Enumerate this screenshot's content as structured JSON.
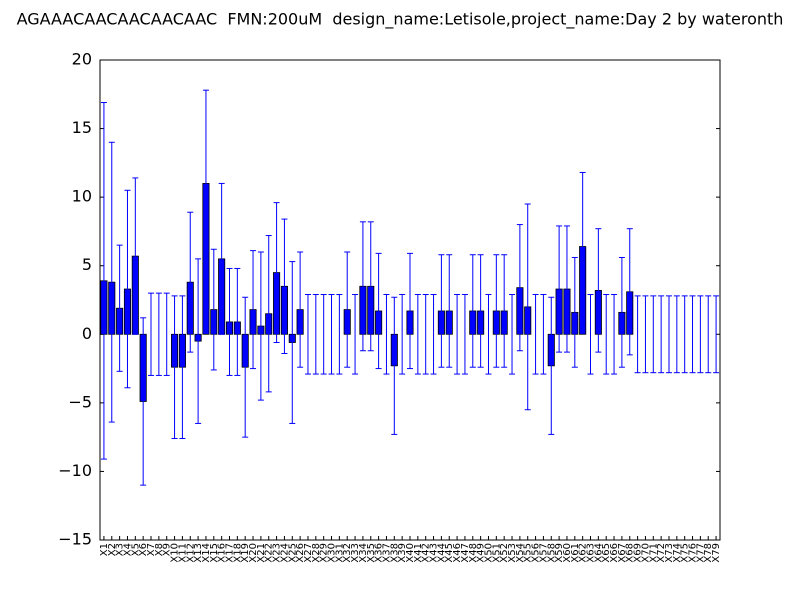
{
  "chart_data": {
    "type": "bar",
    "title": "AGAAACAACAACAACAAC  FMN:200uM  design_name:Letisole,project_name:Day 2 by wateronth",
    "categories": [
      "X1",
      "X2",
      "X3",
      "X4",
      "X5",
      "X6",
      "X7",
      "X8",
      "X9",
      "X10",
      "X11",
      "X12",
      "X13",
      "X14",
      "X15",
      "X16",
      "X17",
      "X18",
      "X19",
      "X20",
      "X21",
      "X22",
      "X23",
      "X24",
      "X25",
      "X26",
      "X27",
      "X28",
      "X29",
      "X30",
      "X31",
      "X32",
      "X33",
      "X34",
      "X35",
      "X36",
      "X37",
      "X38",
      "X39",
      "X40",
      "X41",
      "X42",
      "X43",
      "X44",
      "X45",
      "X46",
      "X47",
      "X48",
      "X49",
      "X50",
      "X51",
      "X52",
      "X53",
      "X54",
      "X55",
      "X56",
      "X57",
      "X58",
      "X59",
      "X60",
      "X61",
      "X62",
      "X63",
      "X64",
      "X65",
      "X66",
      "X67",
      "X68",
      "X69",
      "X70",
      "X71",
      "X72",
      "X73",
      "X74",
      "X75",
      "X76",
      "X77",
      "X78",
      "X79"
    ],
    "values": [
      3.9,
      3.8,
      1.9,
      3.3,
      5.7,
      -4.9,
      0,
      0,
      0,
      -2.4,
      -2.4,
      3.8,
      -0.5,
      11.0,
      1.8,
      5.5,
      0.9,
      0.9,
      -2.4,
      1.8,
      0.6,
      1.5,
      4.5,
      3.5,
      -0.6,
      1.8,
      0,
      0,
      0,
      0,
      0,
      1.8,
      0,
      3.5,
      3.5,
      1.7,
      0,
      -2.3,
      0,
      1.7,
      0,
      0,
      0,
      1.7,
      1.7,
      0,
      0,
      1.7,
      1.7,
      0,
      1.7,
      1.7,
      0,
      3.4,
      2.0,
      0,
      0,
      -2.3,
      3.3,
      3.3,
      1.6,
      6.4,
      0,
      3.2,
      0,
      0,
      1.6,
      3.1,
      0,
      0,
      0,
      0,
      0,
      0,
      0,
      0,
      0,
      0,
      0
    ],
    "errors": [
      13.0,
      10.2,
      4.6,
      7.2,
      5.7,
      6.1,
      3.0,
      3.0,
      3.0,
      5.2,
      5.2,
      5.1,
      6.0,
      6.8,
      4.4,
      5.5,
      3.9,
      3.9,
      5.1,
      4.3,
      5.4,
      5.7,
      5.1,
      4.9,
      5.9,
      4.2,
      2.9,
      2.9,
      2.9,
      2.9,
      2.9,
      4.2,
      2.9,
      4.7,
      4.7,
      4.2,
      2.9,
      5.0,
      2.9,
      4.2,
      2.9,
      2.9,
      2.9,
      4.1,
      4.1,
      2.9,
      2.9,
      4.1,
      4.1,
      2.9,
      4.1,
      4.1,
      2.9,
      4.6,
      7.5,
      2.9,
      2.9,
      5.0,
      4.6,
      4.6,
      4.0,
      5.4,
      2.9,
      4.5,
      2.9,
      2.9,
      4.0,
      4.6,
      2.8,
      2.8,
      2.8,
      2.8,
      2.8,
      2.8,
      2.8,
      2.8,
      2.8,
      2.8,
      2.8
    ],
    "color": "#0000ff",
    "error_color": "#0000ff",
    "ylim": [
      -15,
      20
    ],
    "yticks": [
      {
        "value": -15,
        "label": "−15"
      },
      {
        "value": -10,
        "label": "−10"
      },
      {
        "value": -5,
        "label": "−5"
      },
      0,
      5,
      10,
      15,
      20
    ],
    "grid": false
  }
}
